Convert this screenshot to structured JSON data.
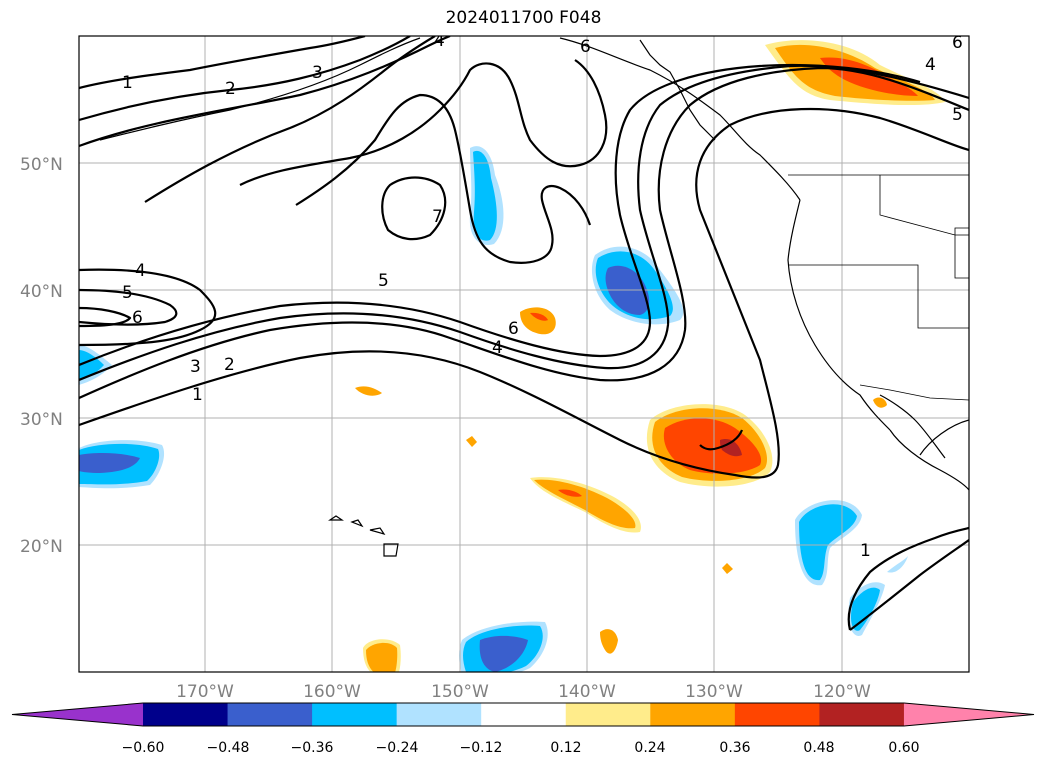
{
  "title": "2024011700 F048",
  "map": {
    "lat_labels": [
      "50°N",
      "40°N",
      "30°N",
      "20°N"
    ],
    "lon_labels": [
      "170°W",
      "160°W",
      "150°W",
      "140°W",
      "130°W",
      "120°W"
    ],
    "contour_labels": [
      "1",
      "2",
      "3",
      "4",
      "5",
      "6",
      "7",
      "6",
      "5",
      "4",
      "6",
      "4",
      "3",
      "2",
      "1",
      "1",
      "6",
      "5",
      "4"
    ]
  },
  "colorbar": {
    "tick_labels": [
      "−0.60",
      "−0.48",
      "−0.36",
      "−0.24",
      "−0.12",
      "0.12",
      "0.24",
      "0.36",
      "0.48",
      "0.60"
    ],
    "colors": [
      "#9932cc",
      "#00008b",
      "#3a5fcd",
      "#00bfff",
      "#b0e2ff",
      "#ffffff",
      "#ffec8b",
      "#ffa500",
      "#ff4500",
      "#b22222",
      "#ff82ab"
    ]
  }
}
